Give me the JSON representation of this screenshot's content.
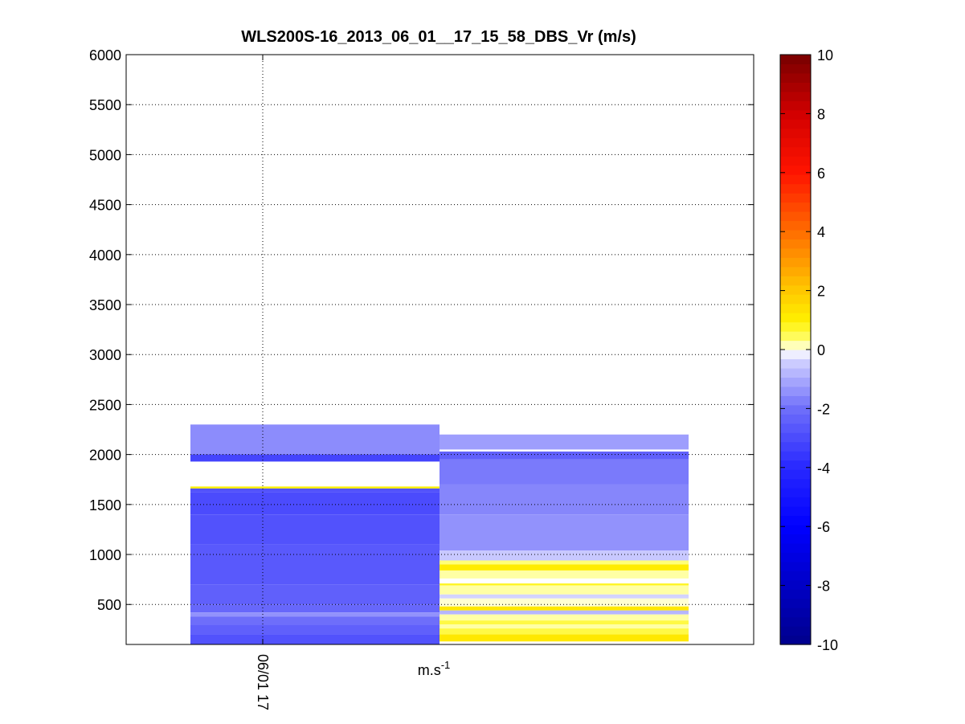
{
  "chart_data": {
    "type": "heatmap",
    "title": "WLS200S-16_2013_06_01__17_15_58_DBS_Vr (m/s)",
    "xlabel": "m.s-1",
    "x_tick_labels": [
      "06/01 17"
    ],
    "ylabel": "",
    "ylim": [
      100,
      6000
    ],
    "y_ticks": [
      500,
      1000,
      1500,
      2000,
      2500,
      3000,
      3500,
      4000,
      4500,
      5000,
      5500,
      6000
    ],
    "grid": true,
    "colorbar": {
      "range": [
        -10,
        10
      ],
      "ticks": [
        -10,
        -8,
        -6,
        -4,
        -2,
        0,
        2,
        4,
        6,
        8,
        10
      ],
      "colormap": "blue-white-yellow-red"
    },
    "columns": [
      {
        "segments": [
          [
            1930,
            2300,
            -1.5
          ],
          [
            1930,
            2000,
            -3.2
          ],
          [
            1660,
            1680,
            1.0
          ],
          [
            1620,
            1660,
            -2.8
          ],
          [
            1400,
            1620,
            -3.0
          ],
          [
            1100,
            1400,
            -2.8
          ],
          [
            700,
            1100,
            -2.6
          ],
          [
            500,
            700,
            -2.4
          ],
          [
            420,
            500,
            -2.2
          ],
          [
            380,
            420,
            -1.4
          ],
          [
            300,
            380,
            -2.0
          ],
          [
            200,
            300,
            -2.4
          ],
          [
            100,
            200,
            -2.8
          ]
        ]
      },
      {
        "segments": [
          [
            2050,
            2200,
            -1.2
          ],
          [
            1950,
            2030,
            -2.4
          ],
          [
            1700,
            1950,
            -1.8
          ],
          [
            1400,
            1700,
            -1.6
          ],
          [
            1040,
            1400,
            -1.4
          ],
          [
            940,
            1040,
            -0.5
          ],
          [
            900,
            940,
            0.3
          ],
          [
            840,
            900,
            1.1
          ],
          [
            760,
            840,
            0.2
          ],
          [
            690,
            710,
            0.8
          ],
          [
            600,
            690,
            0.2
          ],
          [
            560,
            600,
            -0.4
          ],
          [
            480,
            560,
            0.1
          ],
          [
            440,
            480,
            1.2
          ],
          [
            400,
            440,
            -0.8
          ],
          [
            340,
            400,
            0.2
          ],
          [
            300,
            340,
            0.6
          ],
          [
            260,
            300,
            0.2
          ],
          [
            200,
            260,
            0.6
          ],
          [
            130,
            200,
            1.2
          ]
        ]
      }
    ]
  }
}
